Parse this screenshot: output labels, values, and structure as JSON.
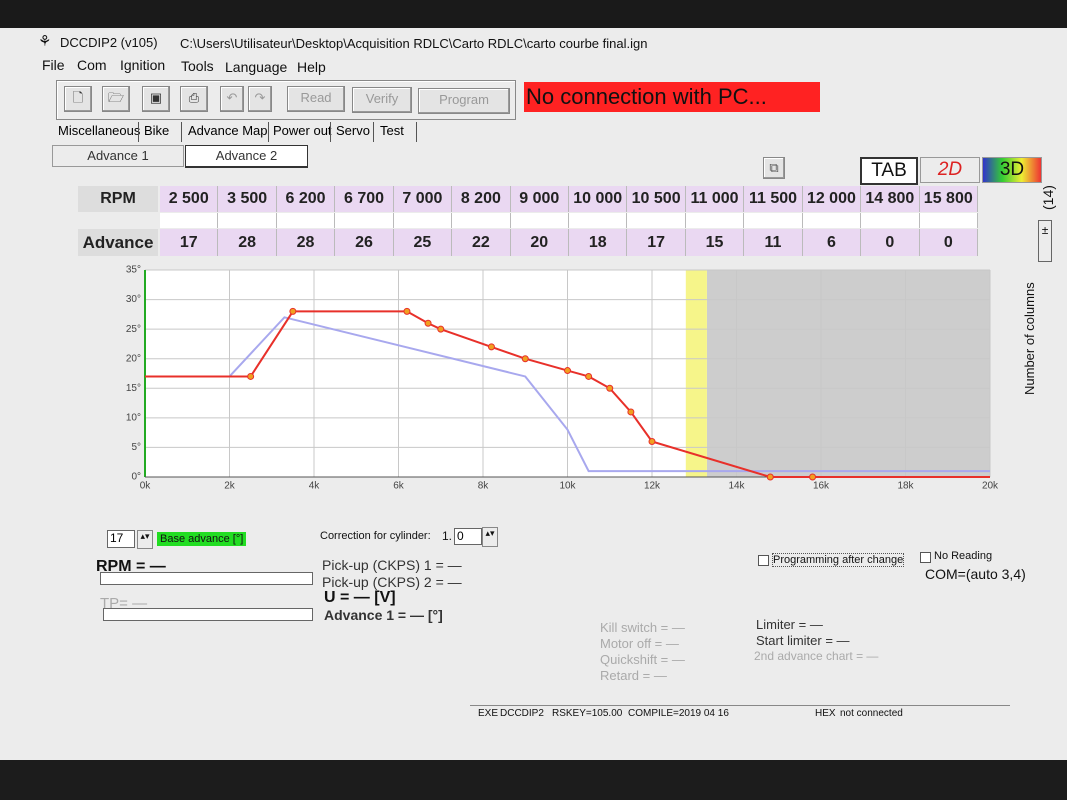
{
  "window": {
    "title": "DCCDIP2 (v105)",
    "path": "C:\\Users\\Utilisateur\\Desktop\\Acquisition RDLC\\Carto RDLC\\carto courbe final.ign"
  },
  "menu": [
    "File",
    "Com",
    "Ignition",
    "Tools",
    "Language",
    "Help"
  ],
  "toolbar": {
    "buttons": [
      "Read",
      "Verify",
      "Program"
    ],
    "status": "No connection with PC..."
  },
  "tabs": [
    "Miscellaneous",
    "Bike",
    "Advance Map",
    "Power out",
    "Servo",
    "Test"
  ],
  "subtabs": [
    "Advance 1",
    "Advance 2"
  ],
  "views": [
    "TAB",
    "2D",
    "3D"
  ],
  "columns": {
    "label": "Number of columns",
    "count": "(14)"
  },
  "table": {
    "headers": [
      "RPM",
      "Advance"
    ],
    "rpm": [
      "2 500",
      "3 500",
      "6 200",
      "6 700",
      "7 000",
      "8 200",
      "9 000",
      "10 000",
      "10 500",
      "11 000",
      "11 500",
      "12 000",
      "14 800",
      "15 800"
    ],
    "advance": [
      17,
      28,
      28,
      26,
      25,
      22,
      20,
      18,
      17,
      15,
      11,
      6,
      0,
      0
    ]
  },
  "chart_data": {
    "type": "line",
    "grid": true,
    "xlim": [
      0,
      20000
    ],
    "ylim": [
      0,
      35
    ],
    "xticks": [
      {
        "value": 0,
        "label": "0k"
      },
      {
        "value": 2000,
        "label": "2k"
      },
      {
        "value": 4000,
        "label": "4k"
      },
      {
        "value": 6000,
        "label": "6k"
      },
      {
        "value": 8000,
        "label": "8k"
      },
      {
        "value": 10000,
        "label": "10k"
      },
      {
        "value": 12000,
        "label": "12k"
      },
      {
        "value": 14000,
        "label": "14k"
      },
      {
        "value": 16000,
        "label": "16k"
      },
      {
        "value": 18000,
        "label": "18k"
      },
      {
        "value": 20000,
        "label": "20k"
      }
    ],
    "yticks": [
      {
        "value": 0,
        "label": "0°"
      },
      {
        "value": 5,
        "label": "5°"
      },
      {
        "value": 10,
        "label": "10°"
      },
      {
        "value": 15,
        "label": "15°"
      },
      {
        "value": 20,
        "label": "20°"
      },
      {
        "value": 25,
        "label": "25°"
      },
      {
        "value": 30,
        "label": "30°"
      },
      {
        "value": 35,
        "label": "35°"
      }
    ],
    "limit_band": {
      "x": [
        12800,
        13300
      ],
      "color": "#f6f58a"
    },
    "shaded": {
      "x": [
        13300,
        20000
      ],
      "color": "#cdcdcd"
    },
    "series": [
      {
        "color": "#a8a8ee",
        "x": [
          2000,
          3300,
          9000,
          10000,
          10500,
          20000
        ],
        "values": [
          17,
          27,
          17,
          8,
          1,
          1
        ]
      },
      {
        "color": "#e8302a",
        "marker_color": "#f0a020",
        "x": [
          0,
          2500,
          3500,
          6200,
          6700,
          7000,
          8200,
          9000,
          10000,
          10500,
          11000,
          11500,
          12000,
          14800,
          15800,
          20000
        ],
        "values": [
          17,
          17,
          28,
          28,
          26,
          25,
          22,
          20,
          18,
          17,
          15,
          11,
          6,
          0,
          0,
          0
        ]
      }
    ]
  },
  "controls": {
    "base_value": "17",
    "base_label": "Base advance [°]",
    "correction_label": "Correction for cylinder:",
    "correction_int": "1.",
    "correction_dec": "0",
    "programming": "Programming after change",
    "no_reading": "No Reading",
    "com": "COM=(auto 3,4)"
  },
  "readouts": {
    "rpm": "RPM = —",
    "tp": "TP= —",
    "pickup1": "Pick-up (CKPS) 1 = —",
    "pickup2": "Pick-up (CKPS) 2 = —",
    "u": "U = — [V]",
    "advance1": "Advance 1 = — [°]",
    "kill": "Kill switch = —",
    "motor_off": "Motor off = —",
    "quickshift": "Quickshift = —",
    "retard": "Retard = —",
    "limiter": "Limiter = —",
    "start_limiter": "Start limiter = —",
    "second_chart": "2nd advance chart = —"
  },
  "statusbar": [
    "EXE",
    "DCCDIP2",
    "RSKEY=105.00",
    "COMPILE=2019 04 16",
    "HEX",
    "not connected"
  ]
}
